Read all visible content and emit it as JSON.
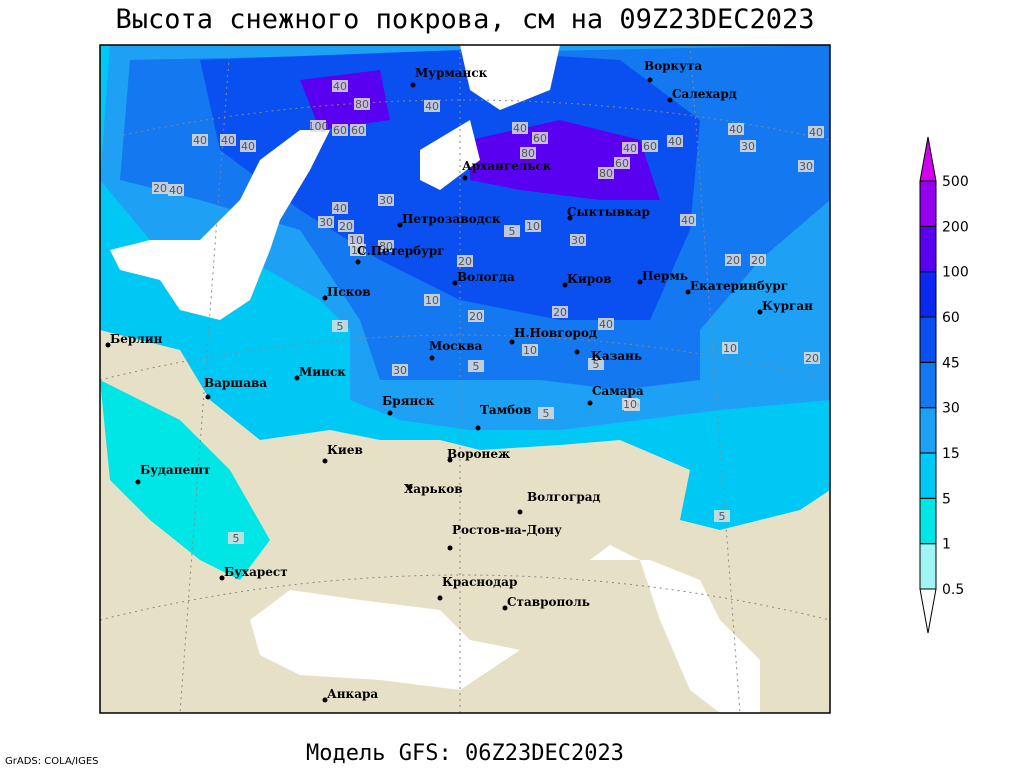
{
  "title": "Высота снежного покрова, см на 09Z23DEC2023",
  "subtitle": "Модель GFS: 06Z23DEC2023",
  "credit": "GrADS: COLA/IGES",
  "legend": {
    "levels": [
      0.5,
      1,
      5,
      15,
      30,
      45,
      60,
      100,
      200,
      500
    ],
    "colors": [
      "#ffffff",
      "#a0f5f5",
      "#00e6e6",
      "#00c8f5",
      "#1ea0f5",
      "#1478f0",
      "#0a50f0",
      "#0a28f0",
      "#5a00f0",
      "#9600f0",
      "#d200f0"
    ]
  },
  "cities": [
    "Мурманск",
    "Воркута",
    "Салехард",
    "Архангельск",
    "Петрозаводск",
    "Сыктывкар",
    "С.Петербург",
    "Вологда",
    "Киров",
    "Пермь",
    "Екатеринбург",
    "Курган",
    "Псков",
    "Н.Новгород",
    "Казань",
    "Москва",
    "Берлин",
    "Варшава",
    "Минск",
    "Самара",
    "Брянск",
    "Тамбов",
    "Киев",
    "Воронеж",
    "Будапешт",
    "Харьков",
    "Волгоград",
    "Ростов-на-Дону",
    "Бухарест",
    "Краснодар",
    "Ставрополь",
    "Анкара"
  ],
  "contour_labels": [
    40,
    80,
    40,
    40,
    40,
    40,
    100,
    60,
    60,
    20,
    40,
    40,
    30,
    20,
    30,
    80,
    40,
    60,
    40,
    60,
    80,
    80,
    40,
    40,
    30,
    40,
    30,
    60,
    30,
    20,
    20,
    40,
    10,
    20,
    5,
    10,
    20,
    5,
    10,
    10,
    30,
    10,
    20,
    40,
    10,
    5,
    5,
    10,
    5,
    20,
    10,
    5,
    5
  ]
}
